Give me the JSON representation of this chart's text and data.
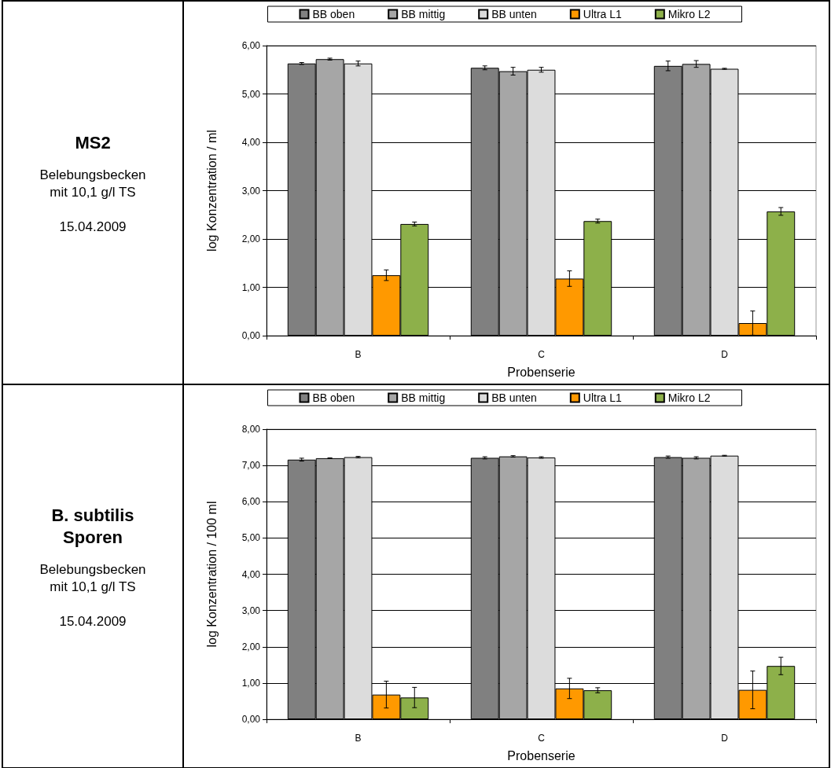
{
  "chart_data": [
    {
      "type": "bar",
      "annotations": [
        "MS2",
        "Belebungsbecken mit 10,1 g/l TS",
        "15.04.2009"
      ],
      "xlabel": "Probenserie",
      "ylabel": "log Konzentration / ml",
      "categories": [
        "B",
        "C",
        "D"
      ],
      "series": [
        {
          "name": "BB oben",
          "color": "#808080",
          "values": [
            5.63,
            5.54,
            5.58
          ],
          "errors": [
            0.02,
            0.04,
            0.1
          ]
        },
        {
          "name": "BB mittig",
          "color": "#a6a6a6",
          "values": [
            5.72,
            5.47,
            5.62
          ],
          "errors": [
            0.02,
            0.08,
            0.07
          ]
        },
        {
          "name": "BB unten",
          "color": "#dcdcdc",
          "values": [
            5.63,
            5.5,
            5.52
          ],
          "errors": [
            0.05,
            0.05,
            0.01
          ]
        },
        {
          "name": "Ultra L1",
          "color": "#ff9900",
          "values": [
            1.25,
            1.18,
            0.26
          ],
          "errors": [
            0.11,
            0.16,
            0.25
          ]
        },
        {
          "name": "Mikro L2",
          "color": "#8db04a",
          "values": [
            2.31,
            2.37,
            2.57
          ],
          "errors": [
            0.04,
            0.04,
            0.08
          ]
        }
      ],
      "ylim": [
        0,
        6
      ],
      "yticks": [
        {
          "value": 0,
          "label": "0,00"
        },
        {
          "value": 1,
          "label": "1,00"
        },
        {
          "value": 2,
          "label": "2,00"
        },
        {
          "value": 3,
          "label": "3,00"
        },
        {
          "value": 4,
          "label": "4,00"
        },
        {
          "value": 5,
          "label": "5,00"
        },
        {
          "value": 6,
          "label": "6,00"
        }
      ],
      "grid": "y",
      "legend": "top"
    },
    {
      "type": "bar",
      "annotations": [
        "B. subtilis Sporen",
        "Belebungsbecken mit 10,1 g/l TS",
        "15.04.2009"
      ],
      "xlabel": "Probenserie",
      "ylabel": "log Konzentration / 100 ml",
      "categories": [
        "B",
        "C",
        "D"
      ],
      "series": [
        {
          "name": "BB oben",
          "color": "#808080",
          "values": [
            7.16,
            7.21,
            7.23
          ],
          "errors": [
            0.04,
            0.03,
            0.03
          ]
        },
        {
          "name": "BB mittig",
          "color": "#a6a6a6",
          "values": [
            7.2,
            7.25,
            7.21
          ],
          "errors": [
            0.01,
            0.02,
            0.03
          ]
        },
        {
          "name": "BB unten",
          "color": "#dcdcdc",
          "values": [
            7.23,
            7.22,
            7.27
          ],
          "errors": [
            0.02,
            0.02,
            0.01
          ]
        },
        {
          "name": "Ultra L1",
          "color": "#ff9900",
          "values": [
            0.68,
            0.85,
            0.81
          ],
          "errors": [
            0.37,
            0.28,
            0.52
          ]
        },
        {
          "name": "Mikro L2",
          "color": "#8db04a",
          "values": [
            0.6,
            0.8,
            1.47
          ],
          "errors": [
            0.28,
            0.07,
            0.24
          ]
        }
      ],
      "ylim": [
        0,
        8
      ],
      "yticks": [
        {
          "value": 0,
          "label": "0,00"
        },
        {
          "value": 1,
          "label": "1,00"
        },
        {
          "value": 2,
          "label": "2,00"
        },
        {
          "value": 3,
          "label": "3,00"
        },
        {
          "value": 4,
          "label": "4,00"
        },
        {
          "value": 5,
          "label": "5,00"
        },
        {
          "value": 6,
          "label": "6,00"
        },
        {
          "value": 7,
          "label": "7,00"
        },
        {
          "value": 8,
          "label": "8,00"
        }
      ],
      "grid": "y",
      "legend": "top"
    }
  ]
}
